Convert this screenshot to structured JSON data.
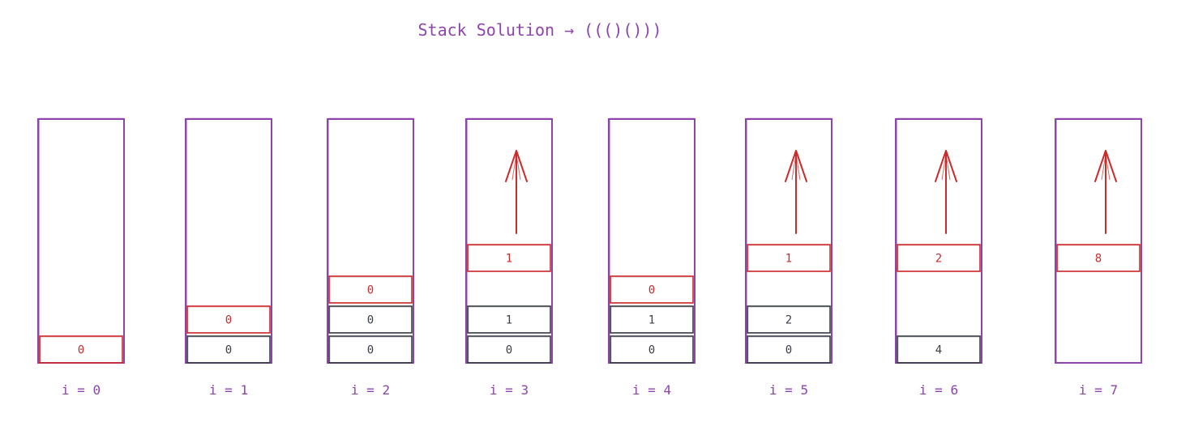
{
  "title": "Stack Solution → ((()()))",
  "colors": {
    "stack_border": "#8e44ad",
    "top_cell": "#cc2b2b",
    "cell": "#3a3f47",
    "arrow": "#cc2b2b",
    "label": "#8e44ad"
  },
  "steps": [
    {
      "label": "i = 0",
      "cells": [
        "0"
      ],
      "arrow": false
    },
    {
      "label": "i = 1",
      "cells": [
        "0",
        "0"
      ],
      "arrow": false
    },
    {
      "label": "i = 2",
      "cells": [
        "0",
        "0",
        "0"
      ],
      "arrow": false
    },
    {
      "label": "i = 3",
      "cells": [
        "0",
        "1"
      ],
      "popped": "1",
      "arrow": true
    },
    {
      "label": "i = 4",
      "cells": [
        "0",
        "1",
        "0"
      ],
      "arrow": false
    },
    {
      "label": "i = 5",
      "cells": [
        "0",
        "2"
      ],
      "popped": "1",
      "arrow": true
    },
    {
      "label": "i = 6",
      "cells": [
        "4"
      ],
      "popped": "2",
      "arrow": true
    },
    {
      "label": "i = 7",
      "cells": [],
      "popped": "8",
      "arrow": true
    }
  ]
}
